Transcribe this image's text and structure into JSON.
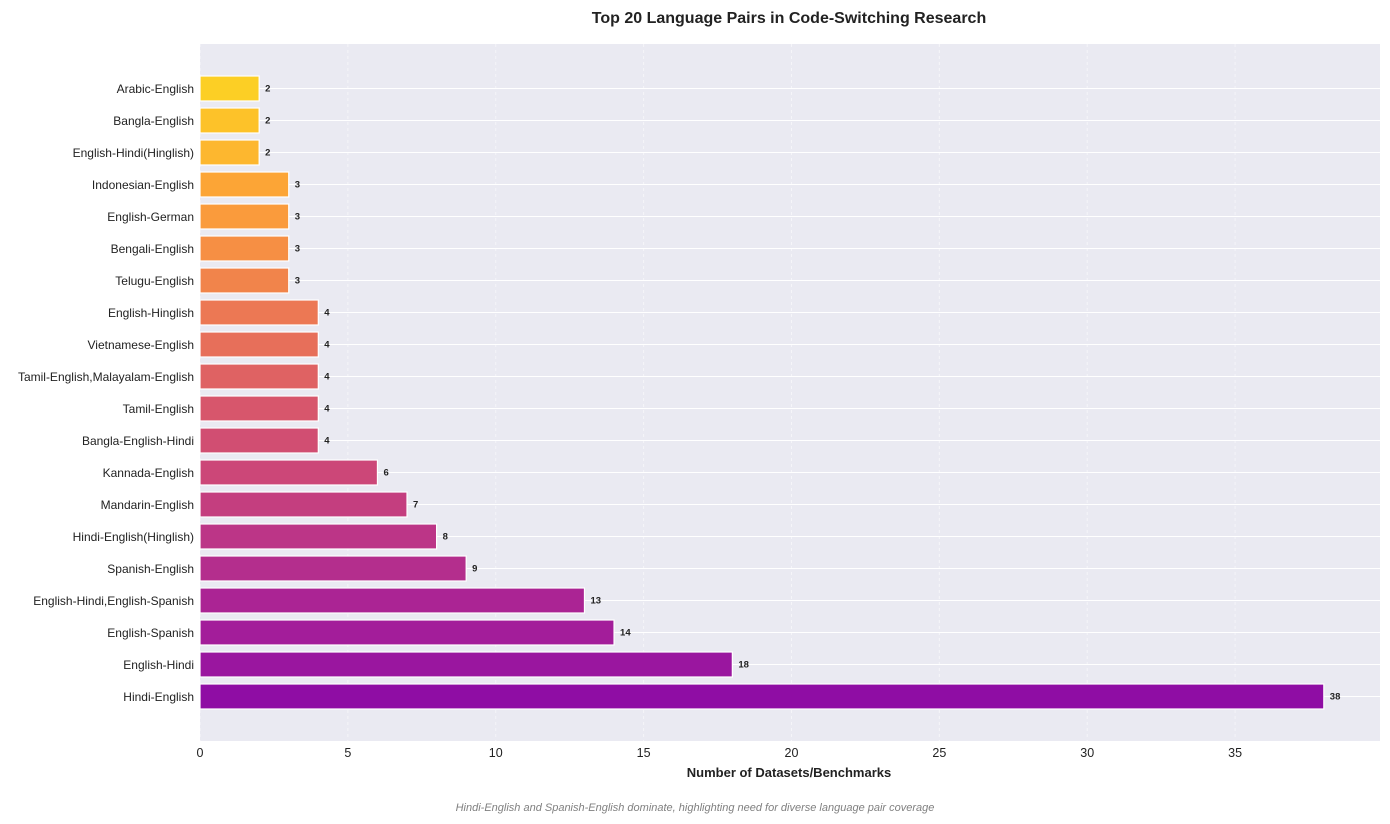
{
  "chart_data": {
    "type": "bar",
    "orientation": "horizontal",
    "title": "Top 20 Language Pairs in Code-Switching Research",
    "xlabel": "Number of Datasets/Benchmarks",
    "ylabel": "",
    "xlim": [
      0,
      39.9
    ],
    "xticks": [
      0,
      5,
      10,
      15,
      20,
      25,
      30,
      35
    ],
    "grid": true,
    "caption": "Hindi-English and Spanish-English dominate, highlighting need for diverse language pair coverage",
    "categories": [
      "Arabic-English",
      "Bangla-English",
      "English-Hindi(Hinglish)",
      "Indonesian-English",
      "English-German",
      "Bengali-English",
      "Telugu-English",
      "English-Hinglish",
      "Vietnamese-English",
      "Tamil-English,Malayalam-English",
      "Tamil-English",
      "Bangla-English-Hindi",
      "Kannada-English",
      "Mandarin-English",
      "Hindi-English(Hinglish)",
      "Spanish-English",
      "English-Hindi,English-Spanish",
      "English-Spanish",
      "English-Hindi",
      "Hindi-English"
    ],
    "values": [
      2,
      2,
      2,
      3,
      3,
      3,
      3,
      4,
      4,
      4,
      4,
      4,
      6,
      7,
      8,
      9,
      13,
      14,
      18,
      38
    ],
    "colors": [
      "#fccf25",
      "#fdc229",
      "#fdb72f",
      "#fca536",
      "#fa9b3c",
      "#f68f44",
      "#f1844b",
      "#ec7854",
      "#e76f5a",
      "#df6263",
      "#d7566c",
      "#d14e72",
      "#cc4778",
      "#c43e7f",
      "#bc3587",
      "#b42e8d",
      "#ab2494",
      "#a31d9a",
      "#9a169f",
      "#8f0da4"
    ]
  }
}
